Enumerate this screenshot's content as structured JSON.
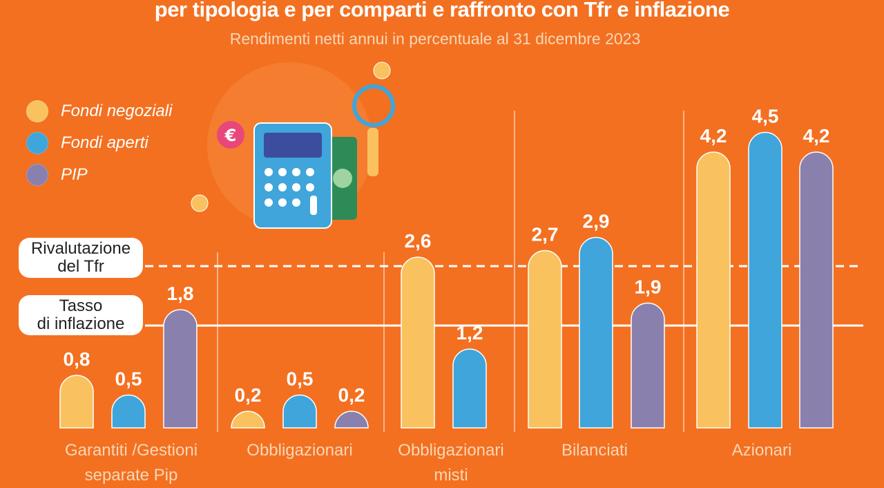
{
  "title": "per tipologia e per comparti e raffronto con Tfr e inflazione",
  "subtitle": "Rendimenti netti annui in percentuale al 31 dicembre 2023",
  "legend": [
    {
      "label": "Fondi negoziali",
      "color": "#F9C25E"
    },
    {
      "label": "Fondi aperti",
      "color": "#3FA5DB"
    },
    {
      "label": "PIP",
      "color": "#8A80AE"
    }
  ],
  "reference_lines": {
    "tfr": {
      "label_line1": "Rivalutazione",
      "label_line2": "del Tfr",
      "style": "dashed",
      "value": 2.5
    },
    "inflation": {
      "label_line1": "Tasso",
      "label_line2": "di inflazione",
      "style": "solid",
      "value": 1.55
    }
  },
  "colors": {
    "background": "#F37021",
    "text": "#FFFFFF"
  },
  "chart_data": {
    "type": "bar",
    "title": "per tipologia e per comparti e raffronto con Tfr e inflazione",
    "subtitle": "Rendimenti netti annui in percentuale al 31 dicembre 2023",
    "categories": [
      {
        "line1": "Garantiti /Gestioni",
        "line2": "separate Pip"
      },
      {
        "line1": "Obbligazionari",
        "line2": ""
      },
      {
        "line1": "Obbligazionari",
        "line2": "misti"
      },
      {
        "line1": "Bilanciati",
        "line2": ""
      },
      {
        "line1": "Azionari",
        "line2": ""
      }
    ],
    "series": [
      {
        "name": "Fondi negoziali",
        "values": [
          0.8,
          0.2,
          2.6,
          2.7,
          4.2
        ],
        "labels": [
          "0,8",
          "0,2",
          "2,6",
          "2,7",
          "4,2"
        ]
      },
      {
        "name": "Fondi aperti",
        "values": [
          0.5,
          0.5,
          1.2,
          2.9,
          4.5
        ],
        "labels": [
          "0,5",
          "0,5",
          "1,2",
          "2,9",
          "4,5"
        ]
      },
      {
        "name": "PIP",
        "values": [
          1.8,
          0.2,
          null,
          1.9,
          4.2
        ],
        "labels": [
          "1,8",
          "0,2",
          null,
          "1,9",
          "4,2"
        ]
      }
    ],
    "ylim": [
      0,
      4.6
    ],
    "grid": false,
    "legend_position": "top-left"
  }
}
